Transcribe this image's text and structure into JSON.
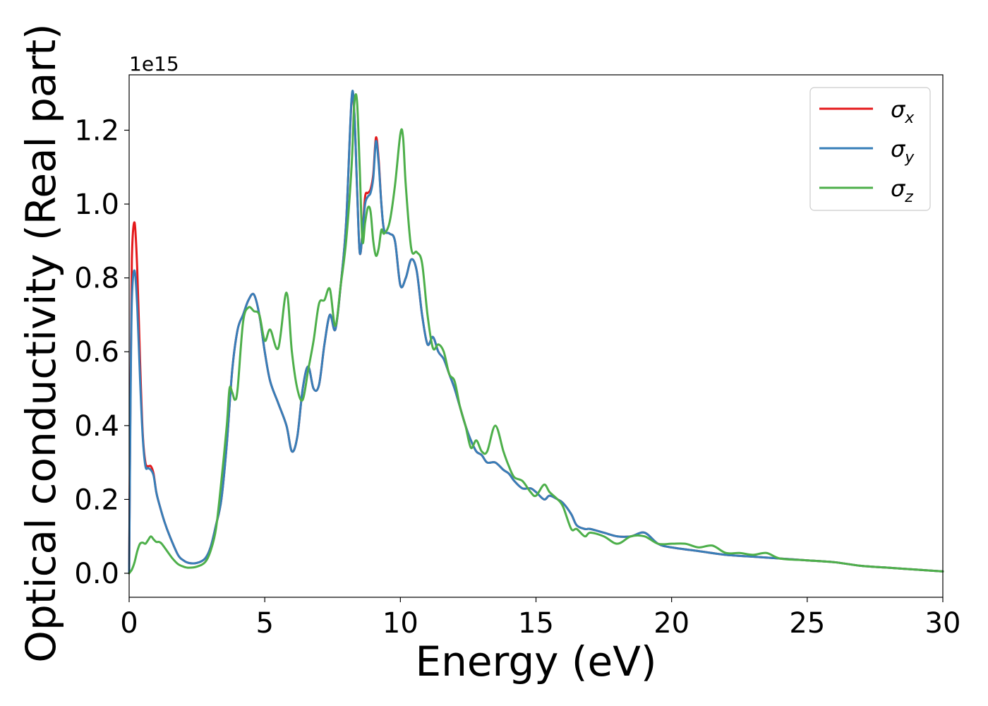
{
  "chart_data": {
    "type": "line",
    "xlabel": "Energy (eV)",
    "ylabel": "Optical conductivity (Real part)",
    "y_offset_label": "1e15",
    "xlim": [
      0,
      30
    ],
    "ylim": [
      -0.065,
      1.35
    ],
    "x_ticks": [
      0,
      5,
      10,
      15,
      20,
      25,
      30
    ],
    "x_tick_labels": [
      "0",
      "5",
      "10",
      "15",
      "20",
      "25",
      "30"
    ],
    "y_ticks": [
      0.0,
      0.2,
      0.4,
      0.6,
      0.8,
      1.0,
      1.2
    ],
    "y_tick_labels": [
      "0.0",
      "0.2",
      "0.4",
      "0.6",
      "0.8",
      "1.0",
      "1.2"
    ],
    "grid": false,
    "legend_position": "top-right",
    "colors": {
      "sigma_x": "#e41a1c",
      "sigma_y": "#377eb8",
      "sigma_z": "#4daf4a"
    },
    "series": [
      {
        "key": "sigma_x",
        "name": "σ",
        "subscript": "x",
        "color": "#e41a1c",
        "x": [
          0,
          0.05,
          0.1,
          0.2,
          0.3,
          0.4,
          0.5,
          0.6,
          0.7,
          0.8,
          0.9,
          1.0,
          1.1,
          1.3,
          1.5,
          1.8,
          2.0,
          2.2,
          2.5,
          2.8,
          3.0,
          3.2,
          3.4,
          3.6,
          3.8,
          4.0,
          4.2,
          4.4,
          4.6,
          4.8,
          5.0,
          5.2,
          5.5,
          5.8,
          6.0,
          6.2,
          6.4,
          6.6,
          6.8,
          7.0,
          7.2,
          7.4,
          7.6,
          7.8,
          8.0,
          8.2,
          8.3,
          8.4,
          8.5,
          8.6,
          8.7,
          8.8,
          8.9,
          9.0,
          9.1,
          9.2,
          9.3,
          9.4,
          9.6,
          9.8,
          10.0,
          10.2,
          10.4,
          10.6,
          10.8,
          11.0,
          11.2,
          11.4,
          11.6,
          11.8,
          12.0,
          12.2,
          12.4,
          12.6,
          12.8,
          13.0,
          13.2,
          13.5,
          13.8,
          14.0,
          14.2,
          14.5,
          14.8,
          15.0,
          15.3,
          15.5,
          15.8,
          16.0,
          16.3,
          16.5,
          16.8,
          17.0,
          17.5,
          18.0,
          18.5,
          19.0,
          19.5,
          20.0,
          21.0,
          22.0,
          23.0,
          24.0,
          25.0,
          26.0,
          27.0,
          28.0,
          29.0,
          30.0
        ],
        "y": [
          0.0,
          0.5,
          0.85,
          0.95,
          0.82,
          0.58,
          0.38,
          0.3,
          0.29,
          0.29,
          0.27,
          0.22,
          0.19,
          0.14,
          0.1,
          0.05,
          0.035,
          0.028,
          0.028,
          0.04,
          0.07,
          0.13,
          0.2,
          0.35,
          0.55,
          0.66,
          0.7,
          0.74,
          0.755,
          0.7,
          0.6,
          0.52,
          0.46,
          0.4,
          0.33,
          0.37,
          0.5,
          0.56,
          0.5,
          0.51,
          0.62,
          0.7,
          0.66,
          0.78,
          0.95,
          1.28,
          1.25,
          1.05,
          0.87,
          0.92,
          1.02,
          1.03,
          1.04,
          1.08,
          1.18,
          1.12,
          1.0,
          0.93,
          0.92,
          0.9,
          0.78,
          0.8,
          0.85,
          0.82,
          0.7,
          0.62,
          0.64,
          0.6,
          0.58,
          0.54,
          0.5,
          0.45,
          0.4,
          0.36,
          0.33,
          0.32,
          0.3,
          0.3,
          0.28,
          0.27,
          0.25,
          0.23,
          0.23,
          0.22,
          0.2,
          0.21,
          0.2,
          0.19,
          0.16,
          0.13,
          0.12,
          0.12,
          0.11,
          0.1,
          0.1,
          0.11,
          0.08,
          0.07,
          0.06,
          0.05,
          0.045,
          0.04,
          0.035,
          0.03,
          0.02,
          0.015,
          0.01,
          0.005
        ]
      },
      {
        "key": "sigma_y",
        "name": "σ",
        "subscript": "y",
        "color": "#377eb8",
        "x": [
          0,
          0.05,
          0.1,
          0.2,
          0.3,
          0.4,
          0.5,
          0.6,
          0.7,
          0.8,
          0.9,
          1.0,
          1.1,
          1.3,
          1.5,
          1.8,
          2.0,
          2.2,
          2.5,
          2.8,
          3.0,
          3.2,
          3.4,
          3.6,
          3.8,
          4.0,
          4.2,
          4.4,
          4.6,
          4.8,
          5.0,
          5.2,
          5.5,
          5.8,
          6.0,
          6.2,
          6.4,
          6.6,
          6.8,
          7.0,
          7.2,
          7.4,
          7.6,
          7.8,
          8.0,
          8.2,
          8.3,
          8.4,
          8.5,
          8.6,
          8.7,
          8.8,
          8.9,
          9.0,
          9.1,
          9.2,
          9.3,
          9.4,
          9.6,
          9.8,
          10.0,
          10.2,
          10.4,
          10.6,
          10.8,
          11.0,
          11.2,
          11.4,
          11.6,
          11.8,
          12.0,
          12.2,
          12.4,
          12.6,
          12.8,
          13.0,
          13.2,
          13.5,
          13.8,
          14.0,
          14.2,
          14.5,
          14.8,
          15.0,
          15.3,
          15.5,
          15.8,
          16.0,
          16.3,
          16.5,
          16.8,
          17.0,
          17.5,
          18.0,
          18.5,
          19.0,
          19.5,
          20.0,
          21.0,
          22.0,
          23.0,
          24.0,
          25.0,
          26.0,
          27.0,
          28.0,
          29.0,
          30.0
        ],
        "y": [
          0.0,
          0.45,
          0.74,
          0.82,
          0.72,
          0.53,
          0.37,
          0.29,
          0.285,
          0.28,
          0.265,
          0.22,
          0.19,
          0.14,
          0.1,
          0.05,
          0.035,
          0.028,
          0.028,
          0.04,
          0.07,
          0.13,
          0.2,
          0.35,
          0.55,
          0.66,
          0.7,
          0.74,
          0.755,
          0.7,
          0.6,
          0.52,
          0.46,
          0.4,
          0.33,
          0.37,
          0.5,
          0.56,
          0.5,
          0.51,
          0.62,
          0.7,
          0.66,
          0.78,
          0.95,
          1.285,
          1.25,
          1.05,
          0.87,
          0.92,
          1.0,
          1.02,
          1.03,
          1.07,
          1.17,
          1.11,
          1.0,
          0.93,
          0.92,
          0.9,
          0.78,
          0.8,
          0.85,
          0.82,
          0.7,
          0.62,
          0.64,
          0.6,
          0.58,
          0.54,
          0.5,
          0.45,
          0.4,
          0.36,
          0.33,
          0.32,
          0.3,
          0.3,
          0.28,
          0.27,
          0.25,
          0.23,
          0.23,
          0.22,
          0.2,
          0.21,
          0.2,
          0.19,
          0.16,
          0.13,
          0.12,
          0.12,
          0.11,
          0.1,
          0.1,
          0.11,
          0.08,
          0.07,
          0.06,
          0.05,
          0.045,
          0.04,
          0.035,
          0.03,
          0.02,
          0.015,
          0.01,
          0.005
        ]
      },
      {
        "key": "sigma_z",
        "name": "σ",
        "subscript": "z",
        "color": "#4daf4a",
        "x": [
          0,
          0.1,
          0.2,
          0.3,
          0.4,
          0.5,
          0.6,
          0.7,
          0.8,
          0.9,
          1.0,
          1.1,
          1.2,
          1.4,
          1.6,
          1.8,
          2.0,
          2.2,
          2.5,
          2.8,
          3.0,
          3.2,
          3.4,
          3.6,
          3.7,
          3.8,
          3.9,
          4.0,
          4.2,
          4.4,
          4.6,
          4.8,
          5.0,
          5.2,
          5.5,
          5.8,
          6.0,
          6.2,
          6.4,
          6.6,
          6.8,
          7.0,
          7.2,
          7.4,
          7.6,
          7.8,
          8.0,
          8.2,
          8.3,
          8.4,
          8.5,
          8.6,
          8.7,
          8.8,
          8.9,
          9.0,
          9.1,
          9.2,
          9.3,
          9.4,
          9.6,
          9.8,
          10.0,
          10.1,
          10.2,
          10.4,
          10.6,
          10.8,
          11.0,
          11.2,
          11.4,
          11.6,
          11.8,
          12.0,
          12.2,
          12.4,
          12.6,
          12.8,
          13.0,
          13.2,
          13.5,
          13.8,
          14.0,
          14.2,
          14.5,
          14.8,
          15.0,
          15.3,
          15.5,
          15.8,
          16.0,
          16.3,
          16.5,
          16.8,
          17.0,
          17.5,
          18.0,
          18.5,
          19.0,
          19.5,
          20.0,
          20.5,
          21.0,
          21.5,
          22.0,
          22.5,
          23.0,
          23.5,
          24.0,
          25.0,
          26.0,
          27.0,
          28.0,
          29.0,
          30.0
        ],
        "y": [
          0.0,
          0.01,
          0.03,
          0.06,
          0.08,
          0.083,
          0.08,
          0.09,
          0.1,
          0.092,
          0.085,
          0.085,
          0.08,
          0.06,
          0.04,
          0.025,
          0.018,
          0.015,
          0.018,
          0.03,
          0.06,
          0.12,
          0.25,
          0.4,
          0.5,
          0.49,
          0.47,
          0.5,
          0.68,
          0.72,
          0.71,
          0.7,
          0.63,
          0.66,
          0.61,
          0.76,
          0.6,
          0.5,
          0.47,
          0.55,
          0.63,
          0.73,
          0.74,
          0.77,
          0.67,
          0.78,
          0.9,
          1.1,
          1.27,
          1.28,
          1.1,
          0.9,
          0.95,
          0.99,
          0.98,
          0.9,
          0.86,
          0.88,
          0.93,
          0.92,
          0.95,
          1.05,
          1.19,
          1.18,
          1.05,
          0.88,
          0.87,
          0.84,
          0.7,
          0.61,
          0.62,
          0.6,
          0.54,
          0.52,
          0.45,
          0.4,
          0.34,
          0.36,
          0.33,
          0.33,
          0.4,
          0.33,
          0.29,
          0.26,
          0.25,
          0.22,
          0.21,
          0.24,
          0.22,
          0.2,
          0.18,
          0.12,
          0.12,
          0.1,
          0.11,
          0.1,
          0.08,
          0.1,
          0.1,
          0.08,
          0.08,
          0.08,
          0.07,
          0.075,
          0.055,
          0.055,
          0.05,
          0.055,
          0.04,
          0.035,
          0.03,
          0.02,
          0.015,
          0.01,
          0.005
        ]
      }
    ]
  }
}
